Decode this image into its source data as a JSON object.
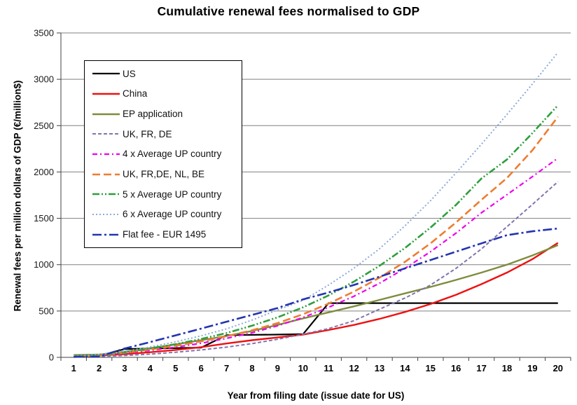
{
  "chart_data": {
    "type": "line",
    "title": "Cumulative renewal fees normalised to GDP",
    "xlabel": "Year from filing date (issue date for US)",
    "ylabel": "Renewal fees per million dollars of GDP  (€/million$)",
    "categories": [
      1,
      2,
      3,
      4,
      5,
      6,
      7,
      8,
      9,
      10,
      11,
      12,
      13,
      14,
      15,
      16,
      17,
      18,
      19,
      20
    ],
    "ylim": [
      0,
      3500
    ],
    "ytick_step": 500,
    "grid": "horizontal-gridlines",
    "legend_position": "upper-left-inside",
    "gridline_color": "#808080",
    "axis_color": "#404040",
    "series": [
      {
        "name": "US",
        "color": "#000000",
        "dash": "",
        "width": 2.2,
        "values": [
          10,
          15,
          90,
          95,
          100,
          105,
          240,
          243,
          246,
          250,
          585,
          585,
          585,
          585,
          585,
          585,
          585,
          585,
          585,
          585
        ]
      },
      {
        "name": "China",
        "color": "#ee1111",
        "dash": "",
        "width": 2.4,
        "values": [
          15,
          20,
          35,
          55,
          80,
          110,
          150,
          185,
          215,
          245,
          295,
          350,
          415,
          490,
          575,
          675,
          790,
          915,
          1060,
          1235
        ]
      },
      {
        "name": "EP application",
        "color": "#7e8c3c",
        "dash": "",
        "width": 2.4,
        "values": [
          25,
          30,
          60,
          100,
          140,
          185,
          230,
          285,
          350,
          420,
          485,
          550,
          620,
          690,
          760,
          835,
          915,
          1000,
          1100,
          1210
        ]
      },
      {
        "name": "UK, FR, DE",
        "color": "#8374ae",
        "dash": "5,3",
        "width": 2,
        "values": [
          5,
          10,
          20,
          35,
          55,
          80,
          110,
          148,
          195,
          250,
          310,
          395,
          520,
          640,
          780,
          960,
          1170,
          1410,
          1650,
          1895
        ]
      },
      {
        "name": "4 x Average UP country",
        "color": "#ee00ee",
        "dash": "7,4,2,4",
        "width": 2.2,
        "values": [
          10,
          20,
          45,
          75,
          110,
          152,
          205,
          265,
          340,
          430,
          540,
          660,
          800,
          960,
          1140,
          1340,
          1560,
          1755,
          1950,
          2150
        ]
      },
      {
        "name": "UK, FR,DE, NL, BE",
        "color": "#ed7d31",
        "dash": "11,5",
        "width": 2.6,
        "values": [
          10,
          20,
          50,
          85,
          125,
          172,
          228,
          292,
          370,
          465,
          580,
          710,
          860,
          1030,
          1230,
          1455,
          1700,
          1935,
          2235,
          2595
        ]
      },
      {
        "name": "5 x Average UP country",
        "color": "#2f9e3d",
        "dash": "10,3,2,3,2,3",
        "width": 2.6,
        "values": [
          12,
          25,
          55,
          95,
          142,
          198,
          262,
          342,
          432,
          540,
          668,
          818,
          988,
          1180,
          1400,
          1645,
          1930,
          2135,
          2420,
          2720
        ]
      },
      {
        "name": "6 x Average UP country",
        "color": "#8ea9db",
        "dash": "2,3",
        "width": 2,
        "values": [
          15,
          30,
          65,
          112,
          168,
          232,
          308,
          402,
          512,
          615,
          780,
          962,
          1172,
          1420,
          1690,
          1990,
          2300,
          2620,
          2950,
          3290
        ]
      },
      {
        "name": "Flat fee - EUR 1495",
        "color": "#2434b0",
        "dash": "13,4,3,4",
        "width": 2.6,
        "values": [
          5,
          10,
          95,
          165,
          237,
          310,
          385,
          458,
          532,
          625,
          700,
          782,
          870,
          960,
          1050,
          1140,
          1230,
          1318,
          1360,
          1390
        ]
      }
    ]
  }
}
